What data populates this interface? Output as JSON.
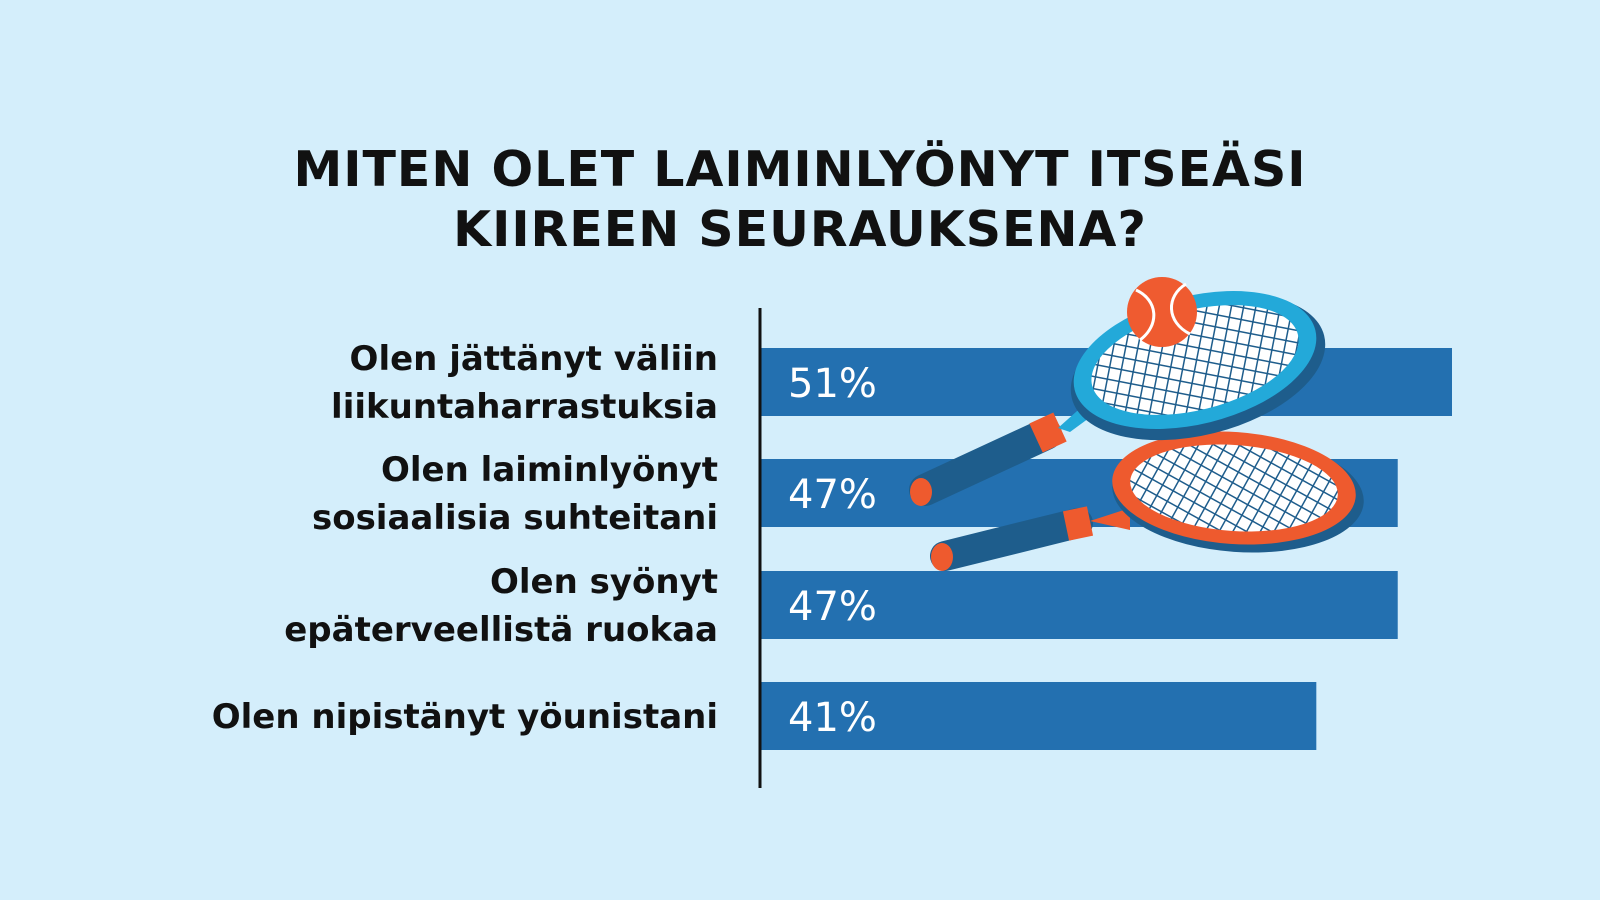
{
  "title_lines": [
    "MITEN OLET LAIMINLYÖNYT ITSEÄSI",
    "KIIREEN SEURAUKSENA?"
  ],
  "colors": {
    "background": "#d4eefb",
    "bar": "#2370b0",
    "axis": "#111111",
    "racket_blue": "#1e5d8c",
    "racket_cyan": "#23a9d9",
    "racket_orange": "#ee5a2e",
    "ball": "#ef5b30"
  },
  "illustration": {
    "icons": [
      "tennis-racket-icon",
      "tennis-racket-icon",
      "tennis-ball-icon"
    ]
  },
  "chart_data": {
    "type": "bar",
    "orientation": "horizontal",
    "categories": [
      [
        "Olen jättänyt väliin",
        "liikuntaharrastuksia"
      ],
      [
        "Olen laiminlyönyt",
        "sosiaalisia suhteitani"
      ],
      [
        "Olen syönyt",
        "epäterveellistä ruokaa"
      ],
      [
        "Olen nipistänyt yöunistani"
      ]
    ],
    "values": [
      51,
      47,
      47,
      41
    ],
    "value_labels": [
      "51%",
      "47%",
      "47%",
      "41%"
    ],
    "xlim": [
      0,
      51
    ],
    "grid": false,
    "legend": "none"
  }
}
